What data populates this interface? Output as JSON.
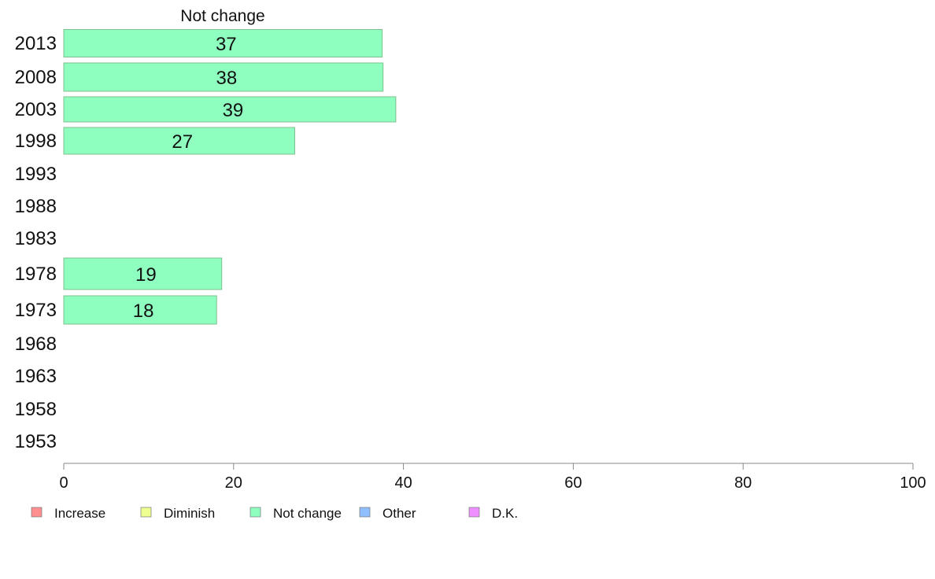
{
  "chart_data": {
    "type": "bar",
    "orientation": "horizontal",
    "title": "Not change",
    "categories": [
      "2013",
      "2008",
      "2003",
      "1998",
      "1993",
      "1988",
      "1983",
      "1978",
      "1973",
      "1968",
      "1963",
      "1958",
      "1953"
    ],
    "series": [
      {
        "name": "Not change",
        "values": [
          37.5,
          37.6,
          39.1,
          27.2,
          null,
          null,
          null,
          18.6,
          18.0,
          null,
          null,
          null,
          null
        ],
        "labels": [
          "37",
          "38",
          "39",
          "27",
          "",
          "",
          "",
          "19",
          "18",
          "",
          "",
          "",
          ""
        ],
        "color": "#8fffbf"
      }
    ],
    "xlim": [
      0,
      100
    ],
    "xticks": [
      0,
      20,
      40,
      60,
      80,
      100
    ],
    "legend": [
      {
        "label": "Increase",
        "color": "#ff8f8f"
      },
      {
        "label": "Diminish",
        "color": "#efff8f"
      },
      {
        "label": "Not change",
        "color": "#8fffbf"
      },
      {
        "label": "Other",
        "color": "#8fbfff"
      },
      {
        "label": "D.K.",
        "color": "#ef8fff"
      }
    ],
    "legend_position": "bottom-left",
    "grid": false
  }
}
